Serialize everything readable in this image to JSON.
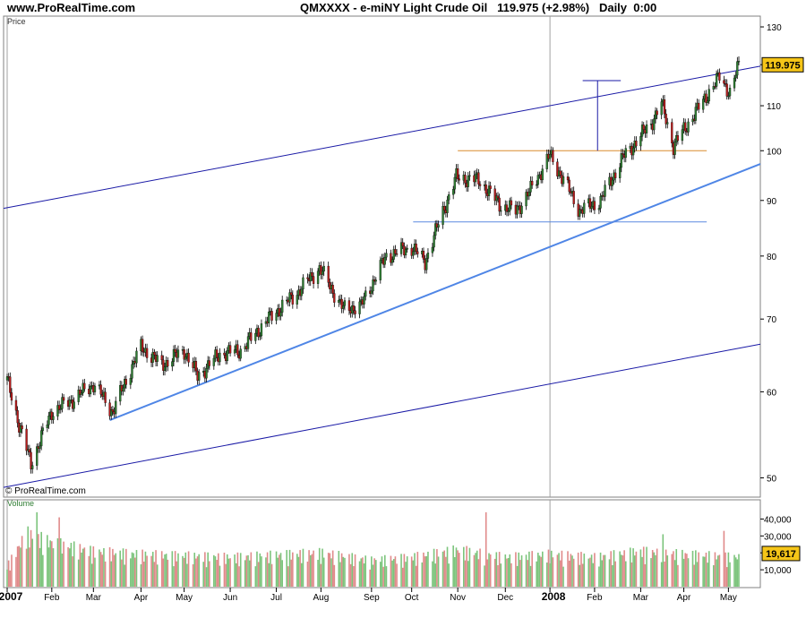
{
  "header": {
    "site": "www.ProRealTime.com",
    "symbol": "QMXXXX - e-miNY Light Crude Oil",
    "price": "119.975",
    "change": "(+2.98%)",
    "period": "Daily  0:00"
  },
  "watermark": "© ProRealTime.com",
  "colors": {
    "up": "#2e7d32",
    "down": "#b71c1c",
    "channel": "#1a1aa6",
    "trend": "#4f86e6",
    "resistance": "#d98c2e",
    "support": "#5b8ae0",
    "price_badge": "#f5c518",
    "volume_up": "#7cc47c",
    "volume_down": "#e08a8a"
  },
  "chart_data": [
    {
      "type": "candlestick",
      "title": "QMXXXX - e-miNY Light Crude Oil",
      "ylabel": "Price",
      "yscale": "log",
      "ylim": [
        48,
        133
      ],
      "yticks": [
        50,
        60,
        70,
        80,
        90,
        100,
        110,
        120,
        130
      ],
      "ytick_labels": [
        "50",
        "60",
        "70",
        "80",
        "90",
        "100",
        "110",
        "",
        "130"
      ],
      "xlim": [
        "2007-01-02",
        "2008-05-08"
      ],
      "x_tick_labels": [
        "2007",
        "Feb",
        "Mar",
        "Apr",
        "May",
        "Jun",
        "Jul",
        "Aug",
        "Sep",
        "Oct",
        "Nov",
        "Dec",
        "2008",
        "Feb",
        "Mar",
        "Apr",
        "May"
      ],
      "x_tick_dates": [
        "2007-01-02",
        "2007-02-01",
        "2007-03-01",
        "2007-04-02",
        "2007-05-01",
        "2007-06-01",
        "2007-07-02",
        "2007-08-01",
        "2007-09-04",
        "2007-10-01",
        "2007-11-01",
        "2007-12-03",
        "2008-01-02",
        "2008-02-01",
        "2008-03-03",
        "2008-04-01",
        "2008-05-01"
      ],
      "last_price": 119.975,
      "close_path": [
        [
          "2007-01-02",
          61.5
        ],
        [
          "2007-01-10",
          56.0
        ],
        [
          "2007-01-18",
          51.5
        ],
        [
          "2007-02-01",
          57.5
        ],
        [
          "2007-02-15",
          59.0
        ],
        [
          "2007-03-01",
          61.0
        ],
        [
          "2007-03-14",
          57.5
        ],
        [
          "2007-04-02",
          66.0
        ],
        [
          "2007-04-16",
          63.5
        ],
        [
          "2007-05-01",
          65.5
        ],
        [
          "2007-05-10",
          62.0
        ],
        [
          "2007-05-25",
          65.0
        ],
        [
          "2007-06-08",
          65.5
        ],
        [
          "2007-06-29",
          70.5
        ],
        [
          "2007-07-16",
          74.0
        ],
        [
          "2007-07-31",
          78.0
        ],
        [
          "2007-08-16",
          71.5
        ],
        [
          "2007-08-28",
          72.0
        ],
        [
          "2007-09-14",
          80.0
        ],
        [
          "2007-10-01",
          81.5
        ],
        [
          "2007-10-10",
          79.0
        ],
        [
          "2007-10-31",
          94.5
        ],
        [
          "2007-11-15",
          94.0
        ],
        [
          "2007-11-30",
          89.0
        ],
        [
          "2007-12-10",
          88.0
        ],
        [
          "2007-12-20",
          92.0
        ],
        [
          "2008-01-02",
          99.0
        ],
        [
          "2008-01-22",
          88.0
        ],
        [
          "2008-02-05",
          90.0
        ],
        [
          "2008-02-20",
          98.5
        ],
        [
          "2008-03-10",
          106.0
        ],
        [
          "2008-03-17",
          110.5
        ],
        [
          "2008-03-25",
          101.0
        ],
        [
          "2008-04-10",
          109.0
        ],
        [
          "2008-04-25",
          117.0
        ],
        [
          "2008-05-02",
          113.0
        ],
        [
          "2008-05-08",
          119.975
        ]
      ],
      "annotations": {
        "channel_upper": [
          [
            "2007-01-02",
            88.5
          ],
          [
            "2008-05-08",
            118.5
          ]
        ],
        "channel_lower": [
          [
            "2007-01-02",
            49.0
          ],
          [
            "2008-05-08",
            66.0
          ]
        ],
        "trend_support": [
          [
            "2007-03-12",
            56.5
          ],
          [
            "2007-08-24",
            69.5
          ],
          [
            "2008-01-28",
            86.5
          ],
          [
            "2008-05-08",
            96.5
          ]
        ],
        "resistance_level": {
          "value": 100,
          "from": "2007-11-01",
          "to": "2008-04-14"
        },
        "support_level": {
          "value": 86,
          "from": "2007-10-02",
          "to": "2008-04-14"
        },
        "target_marker": {
          "from_value": 100,
          "to_value": 116,
          "date": "2008-02-03",
          "cap_from": "2008-01-24",
          "cap_to": "2008-02-15"
        }
      }
    },
    {
      "type": "bar",
      "title": "Volume",
      "ylim": [
        0,
        45000
      ],
      "yticks": [
        10000,
        20000,
        30000,
        40000
      ],
      "ytick_labels": [
        "10,000",
        "20,000",
        "30,000",
        "40,000"
      ],
      "last_value": 19617,
      "last_value_label": "19,617",
      "profile": [
        [
          "2007-01-02",
          14000
        ],
        [
          "2007-01-15",
          36000
        ],
        [
          "2007-02-01",
          30000
        ],
        [
          "2007-03-01",
          24000
        ],
        [
          "2007-04-02",
          22000
        ],
        [
          "2007-06-01",
          20000
        ],
        [
          "2007-08-01",
          23000
        ],
        [
          "2007-09-04",
          18000
        ],
        [
          "2007-10-01",
          20000
        ],
        [
          "2007-11-01",
          25000
        ],
        [
          "2007-12-03",
          20000
        ],
        [
          "2008-01-02",
          22000
        ],
        [
          "2008-02-01",
          20000
        ],
        [
          "2008-03-03",
          24000
        ],
        [
          "2008-04-01",
          22000
        ],
        [
          "2008-05-08",
          20000
        ]
      ],
      "spikes": [
        [
          "2007-01-22",
          44000
        ],
        [
          "2007-02-06",
          41000
        ],
        [
          "2007-11-20",
          44000
        ],
        [
          "2008-03-18",
          31000
        ],
        [
          "2008-04-28",
          33000
        ]
      ]
    }
  ]
}
